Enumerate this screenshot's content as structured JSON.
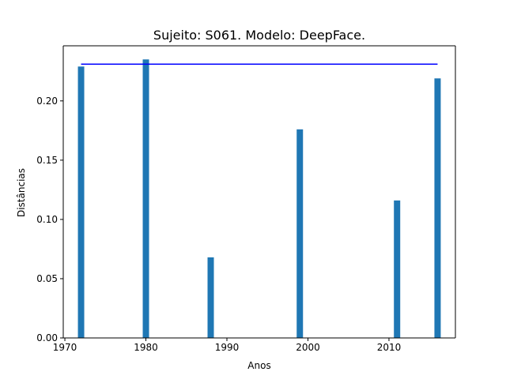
{
  "chart_data": {
    "type": "bar",
    "title": "Sujeito: S061. Modelo: DeepFace.",
    "xlabel": "Anos",
    "ylabel": "Distâncias",
    "xlim": [
      1969.8,
      2018.2
    ],
    "ylim": [
      0,
      0.2465
    ],
    "xticks": [
      1970,
      1980,
      1990,
      2000,
      2010
    ],
    "xtick_labels": [
      "1970",
      "1980",
      "1990",
      "2000",
      "2010"
    ],
    "yticks": [
      0,
      0.05,
      0.1,
      0.15,
      0.2
    ],
    "ytick_labels": [
      "0.00",
      "0.05",
      "0.10",
      "0.15",
      "0.20"
    ],
    "bars": {
      "x": [
        1972,
        1980,
        1988,
        1999,
        2011,
        2016
      ],
      "values": [
        0.229,
        0.235,
        0.068,
        0.176,
        0.116,
        0.219
      ],
      "color": "#1f77b4"
    },
    "reference_line": {
      "x": [
        1972,
        2016
      ],
      "y": 0.231,
      "color": "#0000ff"
    },
    "grid": false,
    "legend": "none"
  }
}
